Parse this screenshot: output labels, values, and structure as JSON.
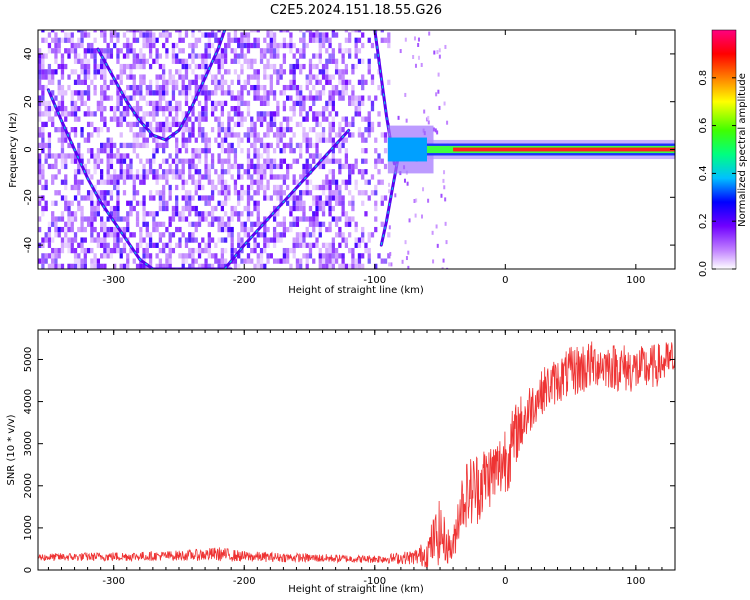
{
  "title": "C2E5.2024.151.18.55.G26",
  "chart_data": [
    {
      "type": "heatmap",
      "xlabel": "Height of straight line (km)",
      "ylabel": "Frequency (Hz)",
      "xlim": [
        -358,
        130
      ],
      "ylim": [
        -50,
        50
      ],
      "x_ticks": [
        -300,
        -200,
        -100,
        0,
        100
      ],
      "y_ticks": [
        -40,
        -20,
        0,
        20,
        40
      ],
      "colorbar": {
        "label": "Normalized spectral amplitude",
        "ticks": [
          0.0,
          0.2,
          0.4,
          0.6,
          0.8
        ],
        "range": [
          0,
          1
        ],
        "colormap": [
          "#ffffff",
          "#c080ff",
          "#7000ff",
          "#0000ff",
          "#00c0ff",
          "#00ff80",
          "#40ff00",
          "#ffff00",
          "#ff8000",
          "#ff0000",
          "#ff0080"
        ]
      },
      "features": {
        "noise_region_x": [
          -358,
          -90
        ],
        "signal_line_freq": 0,
        "signal_line_x": [
          -90,
          130
        ],
        "curved_tracks": [
          {
            "x": [
              -350,
              -340,
              -330,
              -320,
              -310,
              -300,
              -290,
              -280,
              -270,
              -260,
              -250,
              -240,
              -230,
              -220,
              -210
            ],
            "y": [
              25,
              12,
              0,
              -12,
              -22,
              -30,
              -38,
              -46,
              -50,
              -50,
              -50,
              -50,
              -50,
              -50,
              -50
            ]
          },
          {
            "x": [
              -312,
              -300,
              -290,
              -280,
              -270,
              -260,
              -250,
              -240,
              -230,
              -220,
              -215
            ],
            "y": [
              42,
              30,
              20,
              12,
              6,
              4,
              8,
              18,
              30,
              42,
              50
            ]
          },
          {
            "x": [
              -215,
              -200,
              -180,
              -160,
              -140,
              -120
            ],
            "y": [
              -50,
              -40,
              -28,
              -16,
              -4,
              8
            ]
          },
          {
            "x": [
              -100,
              -97,
              -94,
              -91,
              -88,
              -85
            ],
            "y": [
              50,
              38,
              26,
              14,
              4,
              -6
            ]
          },
          {
            "x": [
              -95,
              -91,
              -87,
              -83,
              -80
            ],
            "y": [
              -40,
              -30,
              -18,
              -6,
              4
            ]
          }
        ]
      }
    },
    {
      "type": "line",
      "xlabel": "Height of straight line (km)",
      "ylabel": "SNR (10 * v/v)",
      "xlim": [
        -358,
        130
      ],
      "ylim": [
        0,
        5700
      ],
      "x_ticks": [
        -300,
        -200,
        -100,
        0,
        100
      ],
      "y_ticks": [
        0,
        1000,
        2000,
        3000,
        4000,
        5000
      ],
      "series": [
        {
          "color": "#ee3333",
          "x": [
            -358,
            -330,
            -300,
            -270,
            -240,
            -220,
            -200,
            -170,
            -140,
            -110,
            -90,
            -70,
            -60,
            -55,
            -50,
            -45,
            -40,
            -35,
            -30,
            -25,
            -20,
            -15,
            -10,
            -5,
            0,
            5,
            10,
            15,
            20,
            25,
            30,
            40,
            50,
            60,
            70,
            80,
            90,
            100,
            110,
            120,
            130
          ],
          "y": [
            300,
            310,
            320,
            330,
            350,
            380,
            320,
            300,
            280,
            260,
            270,
            300,
            400,
            700,
            900,
            600,
            500,
            1500,
            1800,
            1900,
            2000,
            2200,
            2300,
            2400,
            2700,
            2900,
            3400,
            3600,
            3900,
            4100,
            4300,
            4500,
            4700,
            4800,
            4900,
            4850,
            4800,
            4750,
            4800,
            4900,
            5000
          ],
          "band": [
            90,
            100,
            110,
            110,
            130,
            170,
            130,
            110,
            100,
            90,
            110,
            180,
            350,
            600,
            800,
            450,
            400,
            700,
            800,
            900,
            900,
            800,
            800,
            800,
            900,
            900,
            700,
            700,
            600,
            500,
            550,
            550,
            600,
            650,
            550,
            550,
            600,
            550,
            550,
            500,
            500
          ]
        }
      ]
    }
  ]
}
